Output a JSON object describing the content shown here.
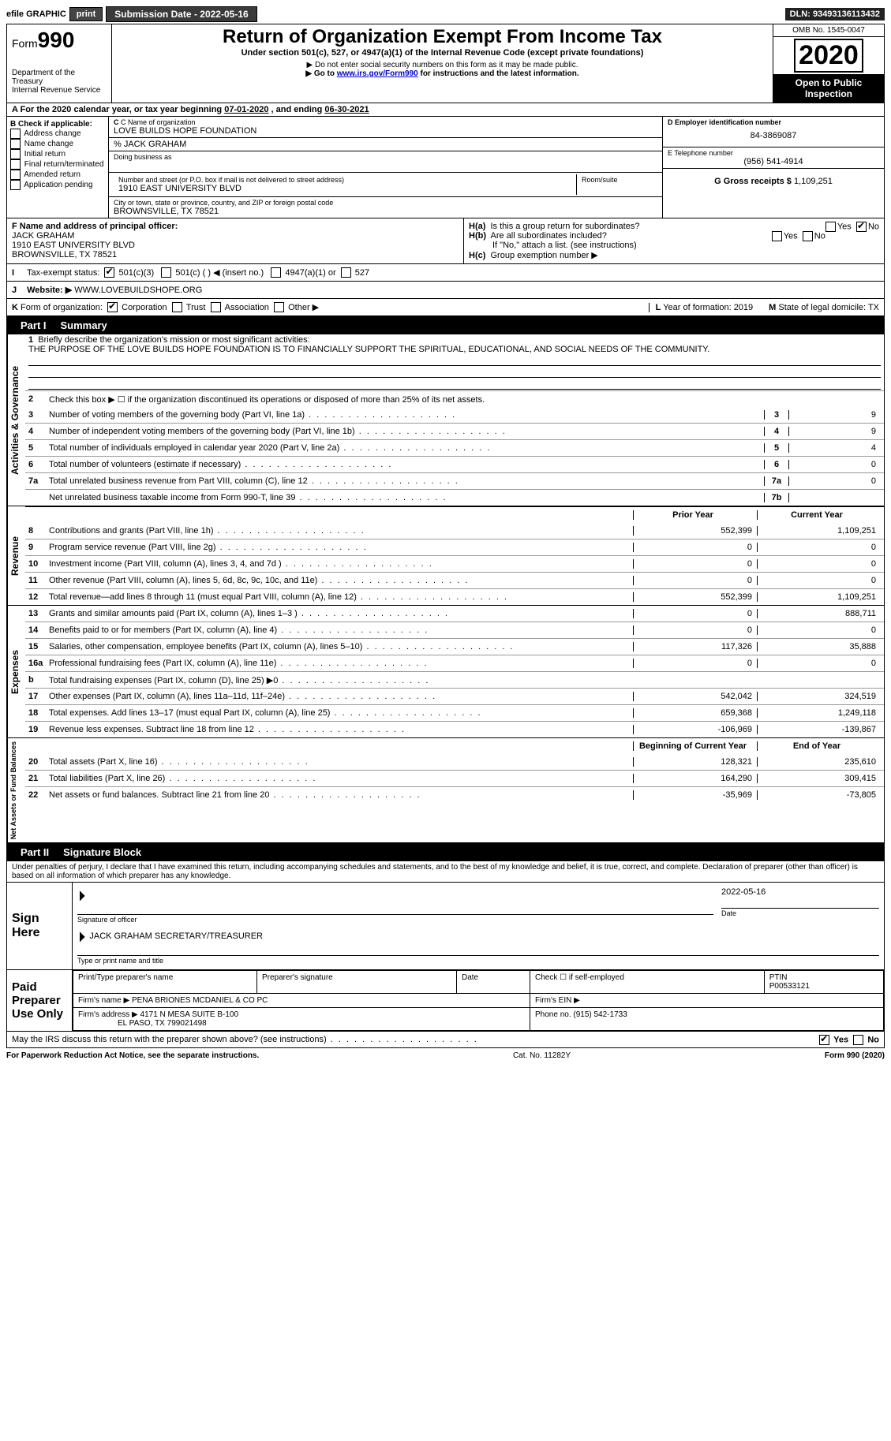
{
  "topbar": {
    "efile": "efile GRAPHIC",
    "print": "print",
    "submission_label": "Submission Date - ",
    "submission_date": "2022-05-16",
    "dln_label": "DLN: ",
    "dln": "93493136113432"
  },
  "header": {
    "form_label": "Form",
    "form_num": "990",
    "dept": "Department of the Treasury\nInternal Revenue Service",
    "title": "Return of Organization Exempt From Income Tax",
    "subtitle": "Under section 501(c), 527, or 4947(a)(1) of the Internal Revenue Code (except private foundations)",
    "note1": "▶ Do not enter social security numbers on this form as it may be made public.",
    "note2_pre": "▶ Go to ",
    "note2_link": "www.irs.gov/Form990",
    "note2_post": " for instructions and the latest information.",
    "omb": "OMB No. 1545-0047",
    "year": "2020",
    "inspection": "Open to Public Inspection"
  },
  "row_a": {
    "text_pre": "A For the 2020 calendar year, or tax year beginning ",
    "begin": "07-01-2020",
    "mid": " , and ending ",
    "end": "06-30-2021"
  },
  "col_b": {
    "title": "B Check if applicable:",
    "items": [
      "Address change",
      "Name change",
      "Initial return",
      "Final return/terminated",
      "Amended return",
      "Application pending"
    ],
    "checked": []
  },
  "col_c": {
    "c_label": "C Name of organization",
    "c_name": "LOVE BUILDS HOPE FOUNDATION",
    "care_of_label": "% ",
    "care_of": "JACK GRAHAM",
    "dba_label": "Doing business as",
    "addr_label": "Number and street (or P.O. box if mail is not delivered to street address)",
    "addr": "1910 EAST UNIVERSITY BLVD",
    "room_label": "Room/suite",
    "city_label": "City or town, state or province, country, and ZIP or foreign postal code",
    "city": "BROWNSVILLE, TX  78521"
  },
  "col_d": {
    "d_label": "D Employer identification number",
    "d_val": "84-3869087",
    "e_label": "E Telephone number",
    "e_val": "(956) 541-4914",
    "g_label": "G Gross receipts $ ",
    "g_val": "1,109,251"
  },
  "row_f": {
    "f_label": "F Name and address of principal officer:",
    "f_name": "JACK GRAHAM",
    "f_addr1": "1910 EAST UNIVERSITY BLVD",
    "f_addr2": "BROWNSVILLE, TX  78521",
    "ha_label": "H(a)  Is this a group return for subordinates?",
    "ha_yes": "Yes",
    "ha_no": "No",
    "ha_checked": "No",
    "hb_label": "H(b)  Are all subordinates included?",
    "hb_yes": "Yes",
    "hb_no": "No",
    "hb_note": "If \"No,\" attach a list. (see instructions)",
    "hc_label": "H(c)  Group exemption number ▶"
  },
  "row_i": {
    "label": "I  Tax-exempt status:",
    "opts": [
      "501(c)(3)",
      "501(c) (  ) ◀ (insert no.)",
      "4947(a)(1) or",
      "527"
    ],
    "checked": 0
  },
  "row_j": {
    "label": "J  Website: ▶ ",
    "val": "WWW.LOVEBUILDSHOPE.ORG"
  },
  "row_k": {
    "label": "K Form of organization:",
    "opts": [
      "Corporation",
      "Trust",
      "Association",
      "Other ▶"
    ],
    "checked": 0,
    "l_label": "L Year of formation: ",
    "l_val": "2019",
    "m_label": "M State of legal domicile: ",
    "m_val": "TX"
  },
  "part1": {
    "hdr": "Part I",
    "title": "Summary",
    "line1_label": "1",
    "line1_text": "Briefly describe the organization's mission or most significant activities:",
    "mission": "THE PURPOSE OF THE LOVE BUILDS HOPE FOUNDATION IS TO FINANCIALLY SUPPORT THE SPIRITUAL, EDUCATIONAL, AND SOCIAL NEEDS OF THE COMMUNITY.",
    "line2_label": "2",
    "line2_text": "Check this box ▶ ☐ if the organization discontinued its operations or disposed of more than 25% of its net assets.",
    "gov_label": "Activities & Governance",
    "gov_rows": [
      {
        "n": "3",
        "t": "Number of voting members of the governing body (Part VI, line 1a)",
        "box": "3",
        "v": "9"
      },
      {
        "n": "4",
        "t": "Number of independent voting members of the governing body (Part VI, line 1b)",
        "box": "4",
        "v": "9"
      },
      {
        "n": "5",
        "t": "Total number of individuals employed in calendar year 2020 (Part V, line 2a)",
        "box": "5",
        "v": "4"
      },
      {
        "n": "6",
        "t": "Total number of volunteers (estimate if necessary)",
        "box": "6",
        "v": "0"
      },
      {
        "n": "7a",
        "t": "Total unrelated business revenue from Part VIII, column (C), line 12",
        "box": "7a",
        "v": "0"
      },
      {
        "n": "",
        "t": "Net unrelated business taxable income from Form 990-T, line 39",
        "box": "7b",
        "v": ""
      }
    ],
    "col_hdr_prior": "Prior Year",
    "col_hdr_current": "Current Year",
    "rev_label": "Revenue",
    "rev_rows": [
      {
        "n": "8",
        "t": "Contributions and grants (Part VIII, line 1h)",
        "p": "552,399",
        "c": "1,109,251"
      },
      {
        "n": "9",
        "t": "Program service revenue (Part VIII, line 2g)",
        "p": "0",
        "c": "0"
      },
      {
        "n": "10",
        "t": "Investment income (Part VIII, column (A), lines 3, 4, and 7d )",
        "p": "0",
        "c": "0"
      },
      {
        "n": "11",
        "t": "Other revenue (Part VIII, column (A), lines 5, 6d, 8c, 9c, 10c, and 11e)",
        "p": "0",
        "c": "0"
      },
      {
        "n": "12",
        "t": "Total revenue—add lines 8 through 11 (must equal Part VIII, column (A), line 12)",
        "p": "552,399",
        "c": "1,109,251"
      }
    ],
    "exp_label": "Expenses",
    "exp_rows": [
      {
        "n": "13",
        "t": "Grants and similar amounts paid (Part IX, column (A), lines 1–3 )",
        "p": "0",
        "c": "888,711"
      },
      {
        "n": "14",
        "t": "Benefits paid to or for members (Part IX, column (A), line 4)",
        "p": "0",
        "c": "0"
      },
      {
        "n": "15",
        "t": "Salaries, other compensation, employee benefits (Part IX, column (A), lines 5–10)",
        "p": "117,326",
        "c": "35,888"
      },
      {
        "n": "16a",
        "t": "Professional fundraising fees (Part IX, column (A), line 11e)",
        "p": "0",
        "c": "0"
      },
      {
        "n": "b",
        "t": "Total fundraising expenses (Part IX, column (D), line 25) ▶0",
        "p": "",
        "c": "",
        "shade": true
      },
      {
        "n": "17",
        "t": "Other expenses (Part IX, column (A), lines 11a–11d, 11f–24e)",
        "p": "542,042",
        "c": "324,519"
      },
      {
        "n": "18",
        "t": "Total expenses. Add lines 13–17 (must equal Part IX, column (A), line 25)",
        "p": "659,368",
        "c": "1,249,118"
      },
      {
        "n": "19",
        "t": "Revenue less expenses. Subtract line 18 from line 12",
        "p": "-106,969",
        "c": "-139,867"
      }
    ],
    "na_label": "Net Assets or Fund Balances",
    "na_hdr_begin": "Beginning of Current Year",
    "na_hdr_end": "End of Year",
    "na_rows": [
      {
        "n": "20",
        "t": "Total assets (Part X, line 16)",
        "p": "128,321",
        "c": "235,610"
      },
      {
        "n": "21",
        "t": "Total liabilities (Part X, line 26)",
        "p": "164,290",
        "c": "309,415"
      },
      {
        "n": "22",
        "t": "Net assets or fund balances. Subtract line 21 from line 20",
        "p": "-35,969",
        "c": "-73,805"
      }
    ]
  },
  "part2": {
    "hdr": "Part II",
    "title": "Signature Block",
    "decl": "Under penalties of perjury, I declare that I have examined this return, including accompanying schedules and statements, and to the best of my knowledge and belief, it is true, correct, and complete. Declaration of preparer (other than officer) is based on all information of which preparer has any knowledge.",
    "sign_here": "Sign Here",
    "sig_of_officer": "Signature of officer",
    "sig_date": "2022-05-16",
    "date_label": "Date",
    "officer_name": "JACK GRAHAM  SECRETARY/TREASURER",
    "type_name": "Type or print name and title",
    "paid_prep": "Paid Preparer Use Only",
    "pt_name_label": "Print/Type preparer's name",
    "prep_sig_label": "Preparer's signature",
    "prep_date_label": "Date",
    "self_emp": "Check ☐ if self-employed",
    "ptin_label": "PTIN",
    "ptin": "P00533121",
    "firm_name_label": "Firm's name   ▶ ",
    "firm_name": "PENA BRIONES MCDANIEL & CO PC",
    "firm_ein_label": "Firm's EIN ▶",
    "firm_addr_label": "Firm's address ▶ ",
    "firm_addr1": "4171 N MESA SUITE B-100",
    "firm_addr2": "EL PASO, TX  799021498",
    "phone_label": "Phone no. ",
    "phone": "(915) 542-1733",
    "discuss": "May the IRS discuss this return with the preparer shown above? (see instructions)",
    "discuss_yes": "Yes",
    "discuss_no": "No",
    "discuss_checked": "Yes"
  },
  "footer": {
    "left": "For Paperwork Reduction Act Notice, see the separate instructions.",
    "mid": "Cat. No. 11282Y",
    "right": "Form 990 (2020)"
  }
}
